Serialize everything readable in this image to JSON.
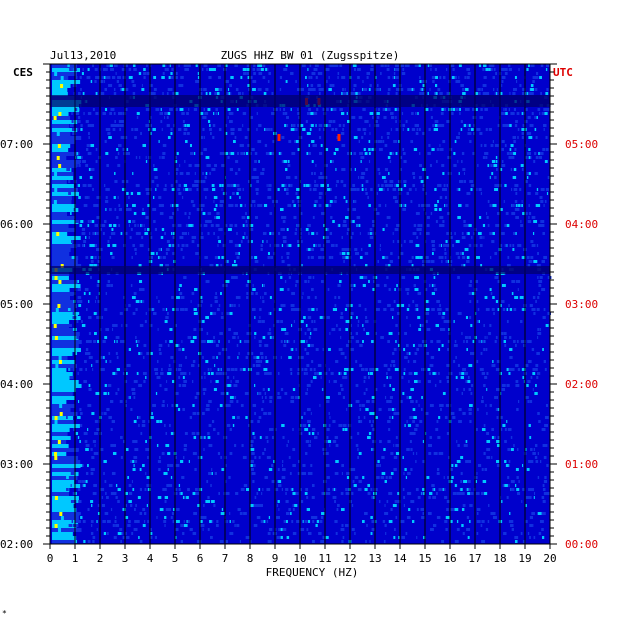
{
  "chart_data": {
    "type": "heatmap",
    "date": "Jul13,2010",
    "title": "ZUGS HHZ BW 01 (Zugsspitze)",
    "left_axis_label": "CES",
    "right_axis_label": "UTC",
    "xlabel": "FREQUENCY (HZ)",
    "xlim": [
      0,
      20
    ],
    "x_ticks": [
      "0",
      "1",
      "2",
      "3",
      "4",
      "5",
      "6",
      "7",
      "8",
      "9",
      "10",
      "11",
      "12",
      "13",
      "14",
      "15",
      "16",
      "17",
      "18",
      "19",
      "20"
    ],
    "left_ticks": [
      "07:00",
      "06:00",
      "05:00",
      "04:00",
      "03:00",
      "02:00"
    ],
    "right_ticks": [
      "05:00",
      "04:00",
      "03:00",
      "02:00",
      "01:00",
      "00:00"
    ],
    "footnote": "*",
    "colors": {
      "background": "#0000cc",
      "low": "#1030e0",
      "mid": "#00c8ff",
      "high": "#ffff00",
      "peak": "#ff2000",
      "grid": "#000000",
      "utc_label": "#dd0000"
    }
  }
}
